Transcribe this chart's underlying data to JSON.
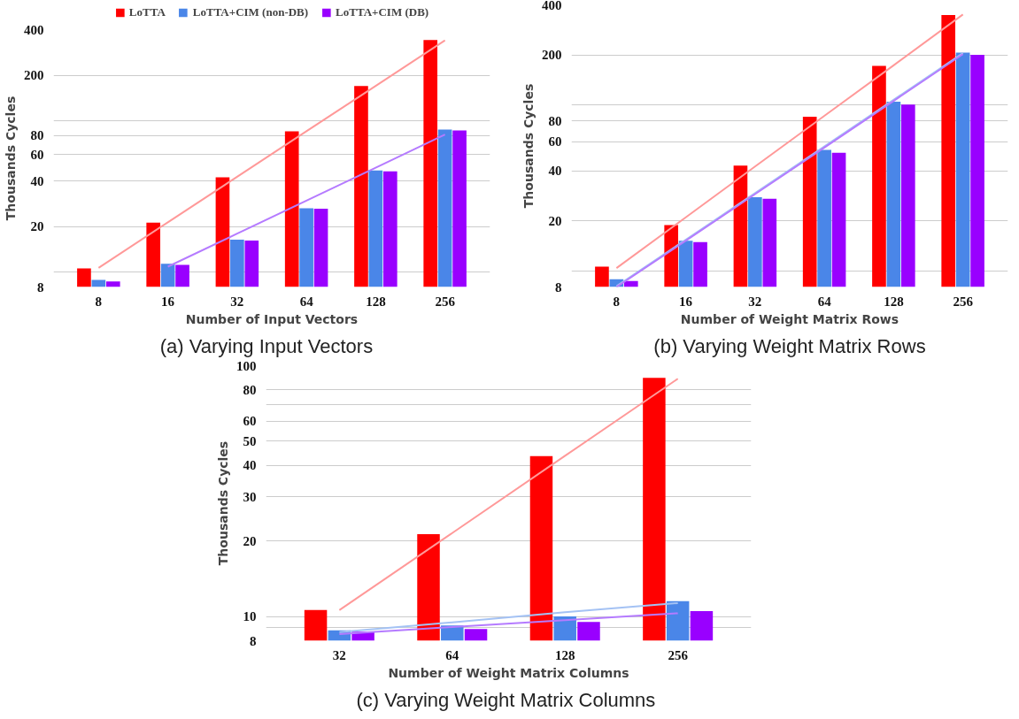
{
  "chart_data": [
    {
      "type": "bar",
      "title": "(a)   Varying Input Vectors",
      "xlabel": "Number of Input Vectors",
      "ylabel": "Thousands Cycles",
      "categories": [
        "8",
        "16",
        "32",
        "64",
        "128",
        "256"
      ],
      "log": true,
      "grid": "y",
      "legend": "top",
      "ylim": [
        8,
        400
      ],
      "yticks": [
        8,
        {
          "value": 10,
          "label": null
        },
        20,
        40,
        60,
        80,
        {
          "value": 100,
          "label": null
        },
        200,
        400
      ],
      "series": [
        {
          "name": "LoTTA",
          "color": "#ff0000",
          "values": [
            10.6,
            21.3,
            42.3,
            85.2,
            169.6,
            341
          ]
        },
        {
          "name": "LoTTA+CIM (non-DB)",
          "color": "#4a86e8",
          "values": [
            8.9,
            11.4,
            16.4,
            26.5,
            47.1,
            87.7
          ]
        },
        {
          "name": "LoTTA+CIM (DB)",
          "color": "#9900ff",
          "values": [
            8.7,
            11.2,
            16.2,
            26.3,
            46.4,
            86.4
          ]
        },
        {
          "type": "line",
          "color": "#ff9999",
          "values": [
            10.7,
            21.4,
            42.7,
            85.3,
            170,
            340
          ]
        },
        {
          "type": "line",
          "color": "#b57bff",
          "values": [
            null,
            10.9,
            18.0,
            29.7,
            49.0,
            81.2
          ]
        }
      ]
    },
    {
      "type": "bar",
      "title": "(b) Varying Weight Matrix Rows",
      "xlabel": "Number of Weight Matrix Rows",
      "ylabel": "Thousands Cycles",
      "categories": [
        "8",
        "16",
        "32",
        "64",
        "128",
        "256"
      ],
      "log": true,
      "grid": "y",
      "ylim": [
        8,
        400
      ],
      "yticks": [
        8,
        {
          "value": 10,
          "label": null
        },
        20,
        40,
        60,
        80,
        {
          "value": 100,
          "label": null
        },
        200,
        400
      ],
      "series": [
        {
          "color": "#ff0000",
          "values": [
            10.6,
            18.9,
            43.1,
            84.8,
            171.5,
            347
          ]
        },
        {
          "color": "#4a86e8",
          "values": [
            8.9,
            15.2,
            27.8,
            53.5,
            104.3,
            206
          ]
        },
        {
          "color": "#9900ff",
          "values": [
            8.7,
            14.9,
            27.2,
            51.5,
            100.4,
            200
          ]
        },
        {
          "type": "line",
          "color": "#ff9999",
          "values": [
            10.4,
            21.0,
            42.5,
            85.8,
            173,
            350
          ]
        },
        {
          "type": "line",
          "color": "#a4c2f4",
          "values": [
            8.1,
            15.4,
            29.4,
            56.1,
            107.2,
            205
          ]
        },
        {
          "type": "line",
          "color": "#b57bff",
          "values": [
            8.0,
            15.2,
            29.0,
            55.3,
            105.6,
            202
          ]
        }
      ]
    },
    {
      "type": "bar",
      "title": "(c)  Varying Weight Matrix Columns",
      "xlabel": "Number of Weight Matrix Columns",
      "ylabel": "Thousands Cycles",
      "categories": [
        "32",
        "64",
        "128",
        "256"
      ],
      "log": true,
      "grid": "y",
      "ylim": [
        8,
        100
      ],
      "yticks": [
        8,
        {
          "value": 9,
          "label": null
        },
        10,
        20,
        30,
        40,
        50,
        60,
        {
          "value": 70,
          "label": null
        },
        80,
        100
      ],
      "series": [
        {
          "color": "#ff0000",
          "values": [
            10.6,
            21.3,
            43.6,
            89.5
          ]
        },
        {
          "color": "#4a86e8",
          "values": [
            8.8,
            9.2,
            10.0,
            11.5
          ]
        },
        {
          "color": "#9900ff",
          "values": [
            8.7,
            8.9,
            9.5,
            10.5
          ]
        },
        {
          "type": "line",
          "color": "#ff9999",
          "values": [
            10.6,
            21.5,
            43.7,
            88.7
          ]
        },
        {
          "type": "line",
          "color": "#a4c2f4",
          "values": [
            8.66,
            9.47,
            10.4,
            11.3
          ]
        },
        {
          "type": "line",
          "color": "#b57bff",
          "values": [
            8.51,
            9.07,
            9.67,
            10.3
          ]
        }
      ]
    }
  ]
}
